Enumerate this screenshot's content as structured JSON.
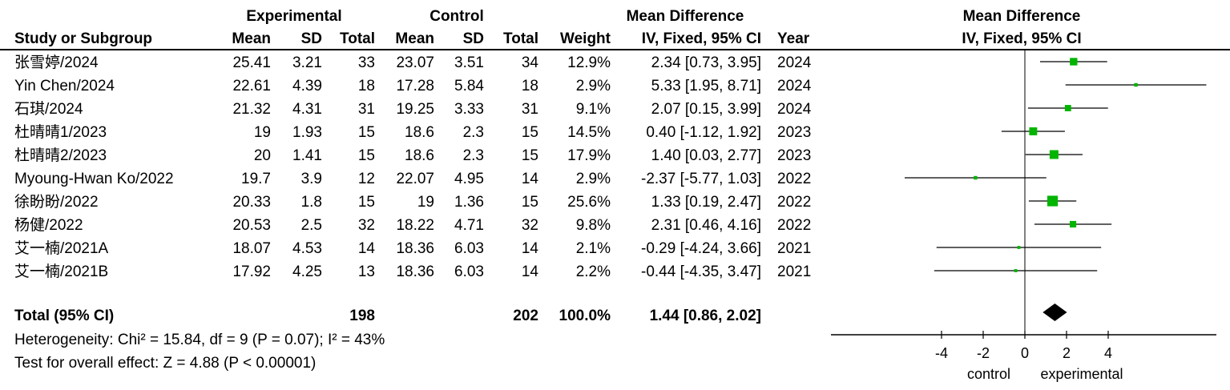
{
  "header": {
    "group_experimental": "Experimental",
    "group_control": "Control",
    "group_md": "Mean Difference",
    "plot_title": "Mean Difference",
    "plot_subtitle": "IV, Fixed, 95% CI",
    "col_study": "Study or Subgroup",
    "col_mean_e": "Mean",
    "col_sd_e": "SD",
    "col_total_e": "Total",
    "col_mean_c": "Mean",
    "col_sd_c": "SD",
    "col_total_c": "Total",
    "col_weight": "Weight",
    "col_ci": "IV, Fixed, 95% CI",
    "col_year": "Year"
  },
  "rows": [
    {
      "study": "张雪婷/2024",
      "mean_e": "25.41",
      "sd_e": "3.21",
      "total_e": "33",
      "mean_c": "23.07",
      "sd_c": "3.51",
      "total_c": "34",
      "weight": "12.9%",
      "ci": "2.34 [0.73, 3.95]",
      "year": "2024"
    },
    {
      "study": "Yin Chen/2024",
      "mean_e": "22.61",
      "sd_e": "4.39",
      "total_e": "18",
      "mean_c": "17.28",
      "sd_c": "5.84",
      "total_c": "18",
      "weight": "2.9%",
      "ci": "5.33 [1.95, 8.71]",
      "year": "2024"
    },
    {
      "study": "石琪/2024",
      "mean_e": "21.32",
      "sd_e": "4.31",
      "total_e": "31",
      "mean_c": "19.25",
      "sd_c": "3.33",
      "total_c": "31",
      "weight": "9.1%",
      "ci": "2.07 [0.15, 3.99]",
      "year": "2024"
    },
    {
      "study": "杜晴晴1/2023",
      "mean_e": "19",
      "sd_e": "1.93",
      "total_e": "15",
      "mean_c": "18.6",
      "sd_c": "2.3",
      "total_c": "15",
      "weight": "14.5%",
      "ci": "0.40 [-1.12, 1.92]",
      "year": "2023"
    },
    {
      "study": "杜晴晴2/2023",
      "mean_e": "20",
      "sd_e": "1.41",
      "total_e": "15",
      "mean_c": "18.6",
      "sd_c": "2.3",
      "total_c": "15",
      "weight": "17.9%",
      "ci": "1.40 [0.03, 2.77]",
      "year": "2023"
    },
    {
      "study": "Myoung-Hwan Ko/2022",
      "mean_e": "19.7",
      "sd_e": "3.9",
      "total_e": "12",
      "mean_c": "22.07",
      "sd_c": "4.95",
      "total_c": "14",
      "weight": "2.9%",
      "ci": "-2.37 [-5.77, 1.03]",
      "year": "2022"
    },
    {
      "study": "徐盼盼/2022",
      "mean_e": "20.33",
      "sd_e": "1.8",
      "total_e": "15",
      "mean_c": "19",
      "sd_c": "1.36",
      "total_c": "15",
      "weight": "25.6%",
      "ci": "1.33 [0.19, 2.47]",
      "year": "2022"
    },
    {
      "study": "杨健/2022",
      "mean_e": "20.53",
      "sd_e": "2.5",
      "total_e": "32",
      "mean_c": "18.22",
      "sd_c": "4.71",
      "total_c": "32",
      "weight": "9.8%",
      "ci": "2.31 [0.46, 4.16]",
      "year": "2022"
    },
    {
      "study": "艾一楠/2021A",
      "mean_e": "18.07",
      "sd_e": "4.53",
      "total_e": "14",
      "mean_c": "18.36",
      "sd_c": "6.03",
      "total_c": "14",
      "weight": "2.1%",
      "ci": "-0.29 [-4.24, 3.66]",
      "year": "2021"
    },
    {
      "study": "艾一楠/2021B",
      "mean_e": "17.92",
      "sd_e": "4.25",
      "total_e": "13",
      "mean_c": "18.36",
      "sd_c": "6.03",
      "total_c": "14",
      "weight": "2.2%",
      "ci": "-0.44 [-4.35, 3.47]",
      "year": "2021"
    }
  ],
  "total": {
    "label": "Total (95% CI)",
    "total_e": "198",
    "total_c": "202",
    "weight": "100.0%",
    "ci": "1.44 [0.86, 2.02]"
  },
  "heterogeneity": "Heterogeneity: Chi² = 15.84, df = 9 (P = 0.07); I² = 43%",
  "overall_effect": "Test for overall effect: Z = 4.88 (P < 0.00001)",
  "axis_footer": {
    "left": "control",
    "right": "experimental"
  },
  "colors": {
    "marker": "#00b400",
    "line": "#000000",
    "diamond": "#000000"
  },
  "chart_data": {
    "type": "forest",
    "xlim": [
      -8,
      9
    ],
    "ticks": [
      -4,
      -2,
      0,
      2,
      4
    ],
    "studies": [
      {
        "md": 2.34,
        "lo": 0.73,
        "hi": 3.95,
        "weight": 12.9
      },
      {
        "md": 5.33,
        "lo": 1.95,
        "hi": 8.71,
        "weight": 2.9
      },
      {
        "md": 2.07,
        "lo": 0.15,
        "hi": 3.99,
        "weight": 9.1
      },
      {
        "md": 0.4,
        "lo": -1.12,
        "hi": 1.92,
        "weight": 14.5
      },
      {
        "md": 1.4,
        "lo": 0.03,
        "hi": 2.77,
        "weight": 17.9
      },
      {
        "md": -2.37,
        "lo": -5.77,
        "hi": 1.03,
        "weight": 2.9
      },
      {
        "md": 1.33,
        "lo": 0.19,
        "hi": 2.47,
        "weight": 25.6
      },
      {
        "md": 2.31,
        "lo": 0.46,
        "hi": 4.16,
        "weight": 9.8
      },
      {
        "md": -0.29,
        "lo": -4.24,
        "hi": 3.66,
        "weight": 2.1
      },
      {
        "md": -0.44,
        "lo": -4.35,
        "hi": 3.47,
        "weight": 2.2
      }
    ],
    "pooled": {
      "md": 1.44,
      "lo": 0.86,
      "hi": 2.02
    }
  }
}
